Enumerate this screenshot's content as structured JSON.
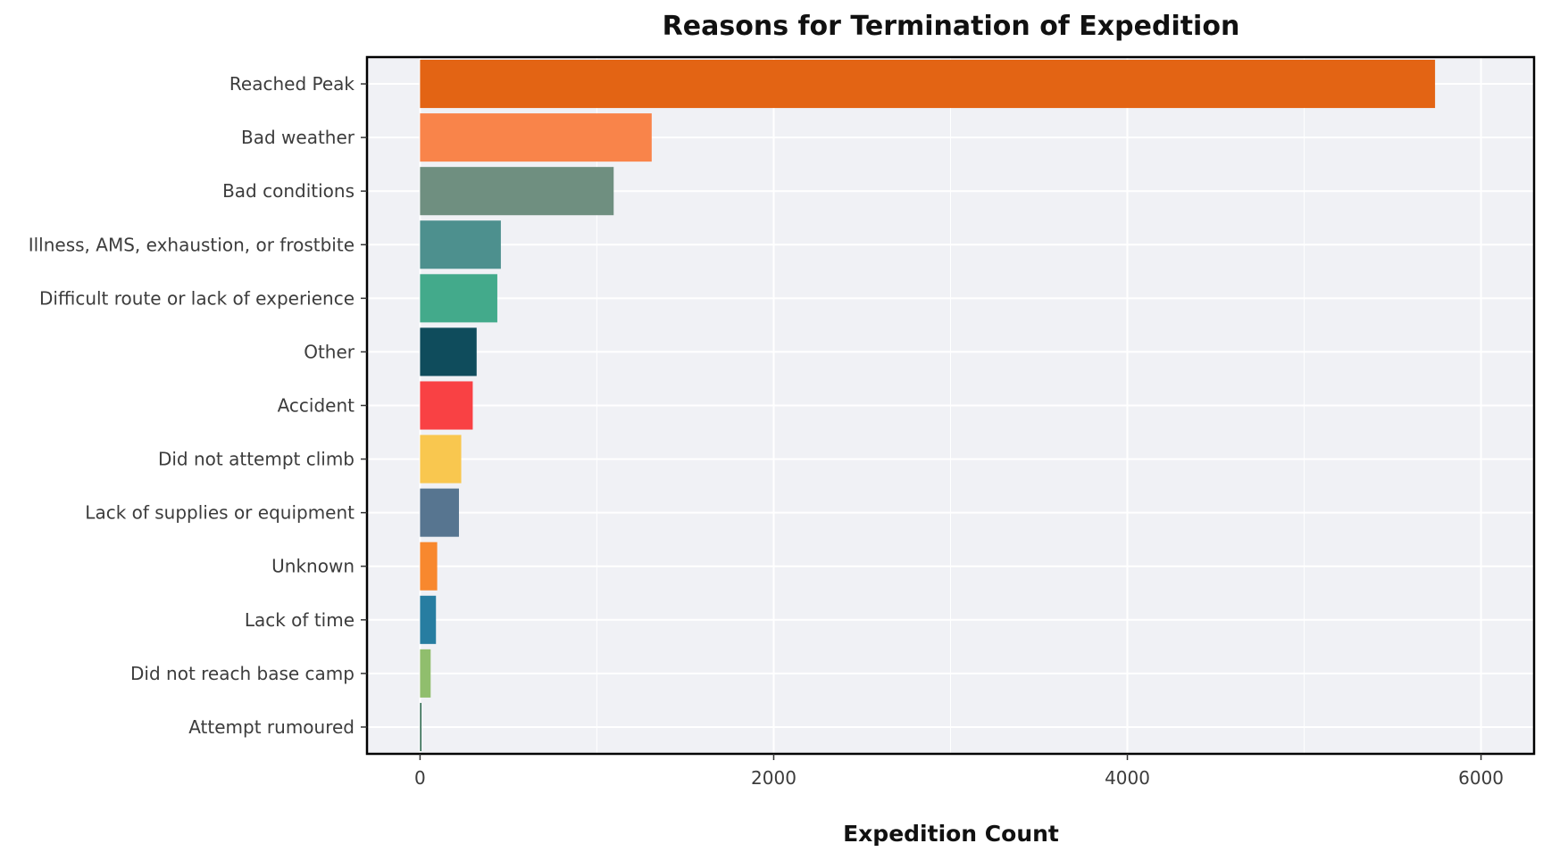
{
  "chart_data": {
    "type": "bar",
    "orientation": "horizontal",
    "title": "Reasons for Termination of Expedition",
    "xlabel": "Expedition Count",
    "ylabel": "",
    "xlim": [
      -300,
      6300
    ],
    "xticks": [
      0,
      2000,
      4000,
      6000
    ],
    "grid": true,
    "legend": "none",
    "categories": [
      "Reached Peak",
      "Bad weather",
      "Bad conditions",
      "Illness, AMS, exhaustion, or frostbite",
      "Difficult route or lack of experience",
      "Other",
      "Accident",
      "Did not attempt climb",
      "Lack of supplies or equipment",
      "Unknown",
      "Lack of time",
      "Did not reach base camp",
      "Attempt rumoured"
    ],
    "values": [
      5740,
      1310,
      1095,
      457,
      437,
      320,
      298,
      233,
      220,
      97,
      90,
      60,
      8
    ],
    "colors": [
      "#e36414",
      "#f9844a",
      "#6f8f80",
      "#4d908e",
      "#43aa8b",
      "#0f4c5c",
      "#f94144",
      "#f9c74f",
      "#577590",
      "#f8882e",
      "#277da1",
      "#90be6d",
      "#2d6a4f"
    ],
    "panel_background": "#f0f1f5",
    "grid_color": "#ffffff",
    "border_color": "#000000"
  }
}
